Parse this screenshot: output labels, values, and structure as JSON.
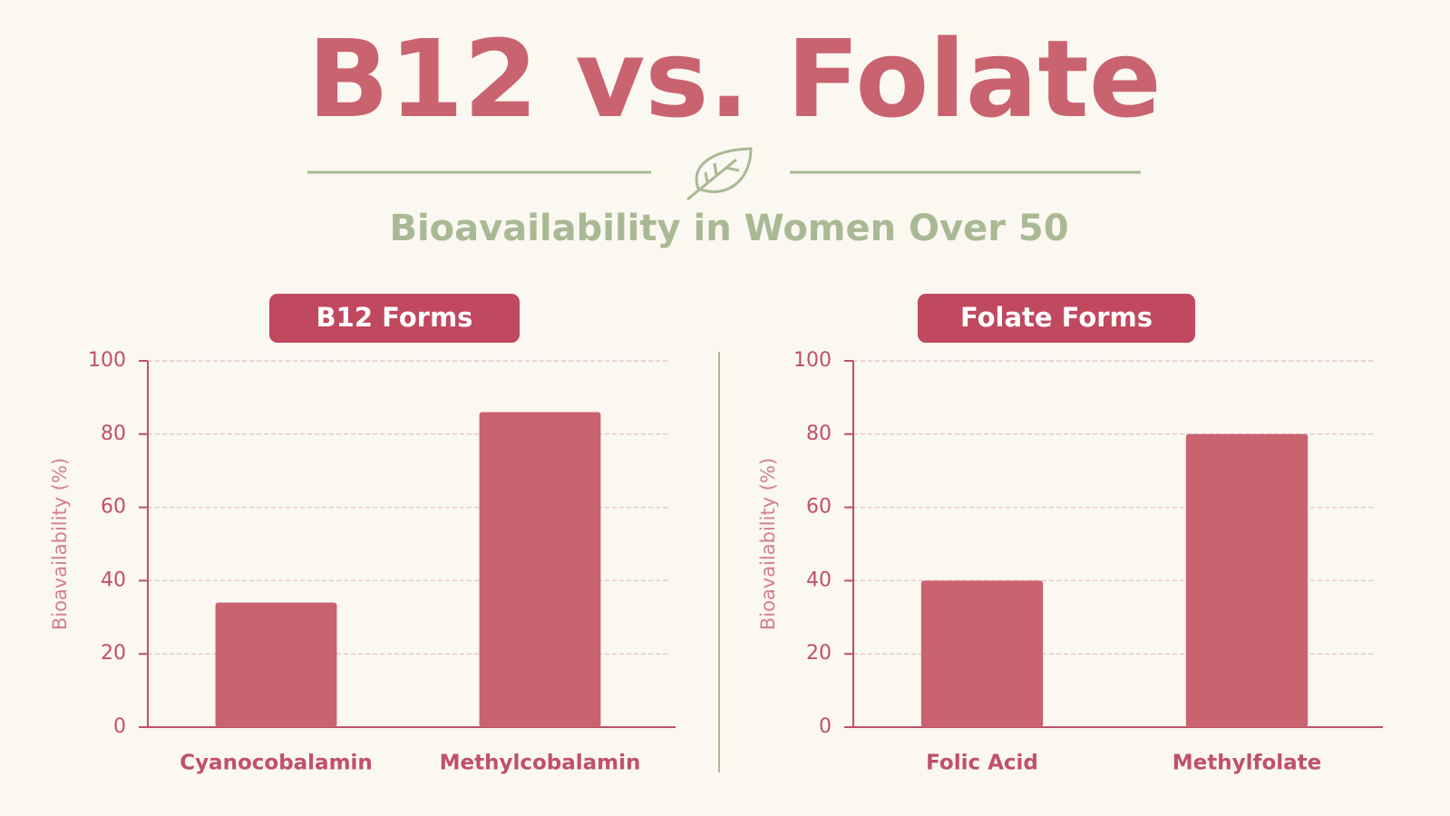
{
  "title": "B12 vs. Folate",
  "subtitle": "Bioavailability in Women Over 50",
  "chart_data": [
    {
      "type": "bar",
      "title": "B12 Forms",
      "y_label": "Bioavailability (%)",
      "categories": [
        "Cyanocobalamin",
        "Methylcobalamin"
      ],
      "values": [
        34,
        86
      ],
      "color": "#c8636f",
      "ylim": [
        0,
        100
      ],
      "yticks": [
        0,
        20,
        40,
        60,
        80,
        100
      ],
      "grid": true
    },
    {
      "type": "bar",
      "title": "Folate Forms",
      "y_label": "Bioavailability (%)",
      "categories": [
        "Folic Acid",
        "Methylfolate"
      ],
      "values": [
        40,
        80
      ],
      "color": "#c8636f",
      "ylim": [
        0,
        100
      ],
      "yticks": [
        0,
        20,
        40,
        60,
        80,
        100
      ],
      "grid": true
    }
  ]
}
